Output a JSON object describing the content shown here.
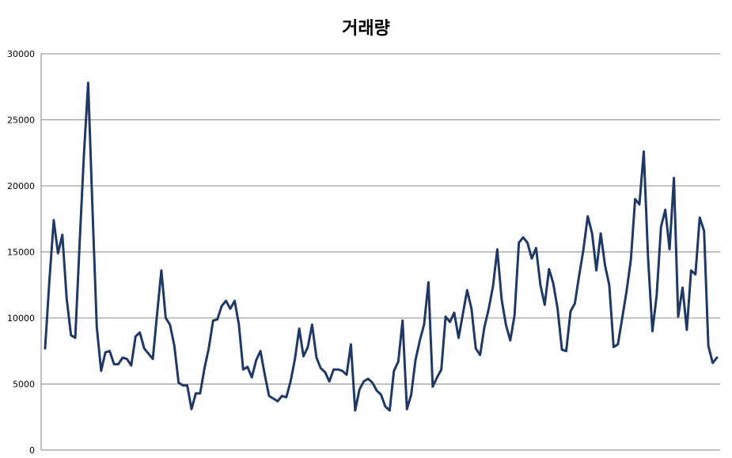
{
  "chart_data": {
    "type": "line",
    "title": "거래량",
    "xlabel": "",
    "ylabel": "",
    "ylim": [
      0,
      30000
    ],
    "yticks": [
      0,
      5000,
      10000,
      15000,
      20000,
      25000,
      30000
    ],
    "grid": true,
    "legend": "none",
    "line_color": "#1F3864",
    "series": [
      {
        "values": [
          7700,
          12800,
          17400,
          14900,
          16300,
          11500,
          8700,
          8500,
          15500,
          22300,
          27800,
          18200,
          9300,
          6000,
          7400,
          7500,
          6500,
          6500,
          7000,
          6900,
          6400,
          8600,
          8900,
          7700,
          7300,
          6900,
          10300,
          13600,
          10000,
          9500,
          7900,
          5100,
          4900,
          4900,
          3100,
          4300,
          4300,
          6200,
          7700,
          9800,
          9900,
          10900,
          11300,
          10700,
          11300,
          9500,
          6100,
          6300,
          5500,
          6800,
          7500,
          5700,
          4100,
          3900,
          3700,
          4100,
          4000,
          5200,
          6900,
          9200,
          7100,
          7800,
          9500,
          7000,
          6200,
          5900,
          5200,
          6100,
          6100,
          6000,
          5700,
          8000,
          3000,
          4600,
          5200,
          5400,
          5100,
          4500,
          4200,
          3300,
          3000,
          6000,
          6700,
          9800,
          3100,
          4200,
          6800,
          8300,
          9500,
          12700,
          4800,
          5500,
          6100,
          10100,
          9700,
          10400,
          8500,
          10300,
          12100,
          10700,
          7700,
          7200,
          9300,
          10700,
          12400,
          15200,
          11400,
          9500,
          8300,
          10200,
          15700,
          16100,
          15700,
          14500,
          15300,
          12500,
          11000,
          13700,
          12600,
          10700,
          7600,
          7500,
          10500,
          11100,
          13200,
          15200,
          17700,
          16400,
          13600,
          16400,
          14000,
          12500,
          7800,
          8000,
          10000,
          12000,
          14400,
          19000,
          18600,
          22600,
          14600,
          9000,
          11700,
          16900,
          18200,
          15200,
          20600,
          10100,
          12300,
          9100,
          13600,
          13300,
          17600,
          16600,
          7900,
          6600,
          7000
        ]
      }
    ]
  }
}
